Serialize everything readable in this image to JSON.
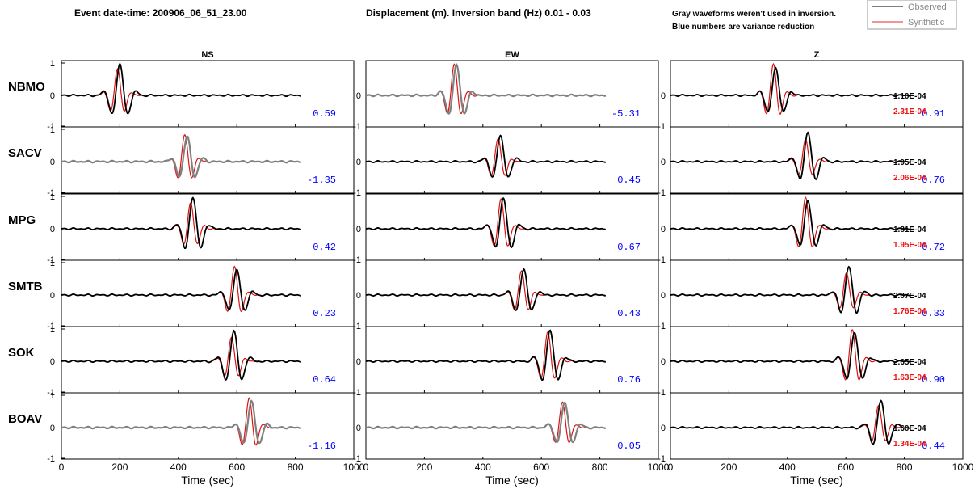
{
  "header": {
    "event": "Event date-time: 200906_06_51_23.00",
    "band": "Displacement (m).  Inversion band (Hz)  0.01 - 0.03",
    "note1": "Gray waveforms weren't used in inversion.",
    "note2": "Blue numbers are variance reduction"
  },
  "legend": {
    "observed": "Observed",
    "synthetic": "Synthetic"
  },
  "colors": {
    "observed": "#000000",
    "synthetic": "#dd1111",
    "unused": "#808080",
    "vr": "#0000ff",
    "amp_syn": "#ee1111"
  },
  "chart_data": {
    "type": "line",
    "xlabel": "Time (sec)",
    "xlim": [
      0,
      1000
    ],
    "xticks": [
      0,
      200,
      400,
      600,
      800,
      1000
    ],
    "ylim": [
      -1,
      1
    ],
    "yticks": [
      -1,
      0,
      1
    ],
    "components": [
      "NS",
      "EW",
      "Z"
    ],
    "stations": [
      {
        "name": "NBMO",
        "vr": [
          "0.59",
          "-5.31",
          "0.91"
        ],
        "amp_obs": "1.10E-04",
        "amp_syn": "2.31E-04",
        "used": [
          true,
          false,
          true
        ],
        "peaks": [
          [
            200,
            355,
            230
          ],
          [
            310,
            325,
            360
          ],
          [
            360,
            345,
            390
          ]
        ]
      },
      {
        "name": "SACV",
        "vr": [
          "-1.35",
          "0.45",
          "0.76"
        ],
        "amp_obs": "1.95E-04",
        "amp_syn": "2.06E-04",
        "used": [
          false,
          true,
          true
        ],
        "peaks": [
          [
            430,
            450,
            280
          ],
          [
            460,
            480,
            400
          ],
          [
            470,
            460,
            520
          ]
        ]
      },
      {
        "name": "MPG",
        "vr": [
          "0.42",
          "0.67",
          "0.72"
        ],
        "amp_obs": "1.81E-04",
        "amp_syn": "1.95E-04",
        "used": [
          true,
          true,
          true
        ],
        "peaks": [
          [
            450,
            420,
            500
          ],
          [
            470,
            490,
            380
          ],
          [
            470,
            460,
            520
          ]
        ]
      },
      {
        "name": "SMTB",
        "vr": [
          "0.23",
          "0.43",
          "0.33"
        ],
        "amp_obs": "2.07E-04",
        "amp_syn": "1.76E-04",
        "used": [
          true,
          true,
          true
        ],
        "peaks": [
          [
            600,
            580,
            500
          ],
          [
            540,
            560,
            650
          ],
          [
            610,
            590,
            660
          ]
        ]
      },
      {
        "name": "SOK",
        "vr": [
          "0.64",
          "0.76",
          "0.90"
        ],
        "amp_obs": "2.65E-04",
        "amp_syn": "1.63E-04",
        "used": [
          true,
          true,
          true
        ],
        "peaks": [
          [
            590,
            580,
            340
          ],
          [
            630,
            650,
            600
          ],
          [
            630,
            650,
            680
          ]
        ]
      },
      {
        "name": "BOAV",
        "vr": [
          "-1.16",
          "0.05",
          "0.44"
        ],
        "amp_obs": "1.60E-04",
        "amp_syn": "1.34E-04",
        "used": [
          false,
          false,
          true
        ],
        "peaks": [
          [
            650,
            640,
            710
          ],
          [
            680,
            670,
            600
          ],
          [
            720,
            700,
            760
          ]
        ]
      }
    ]
  }
}
